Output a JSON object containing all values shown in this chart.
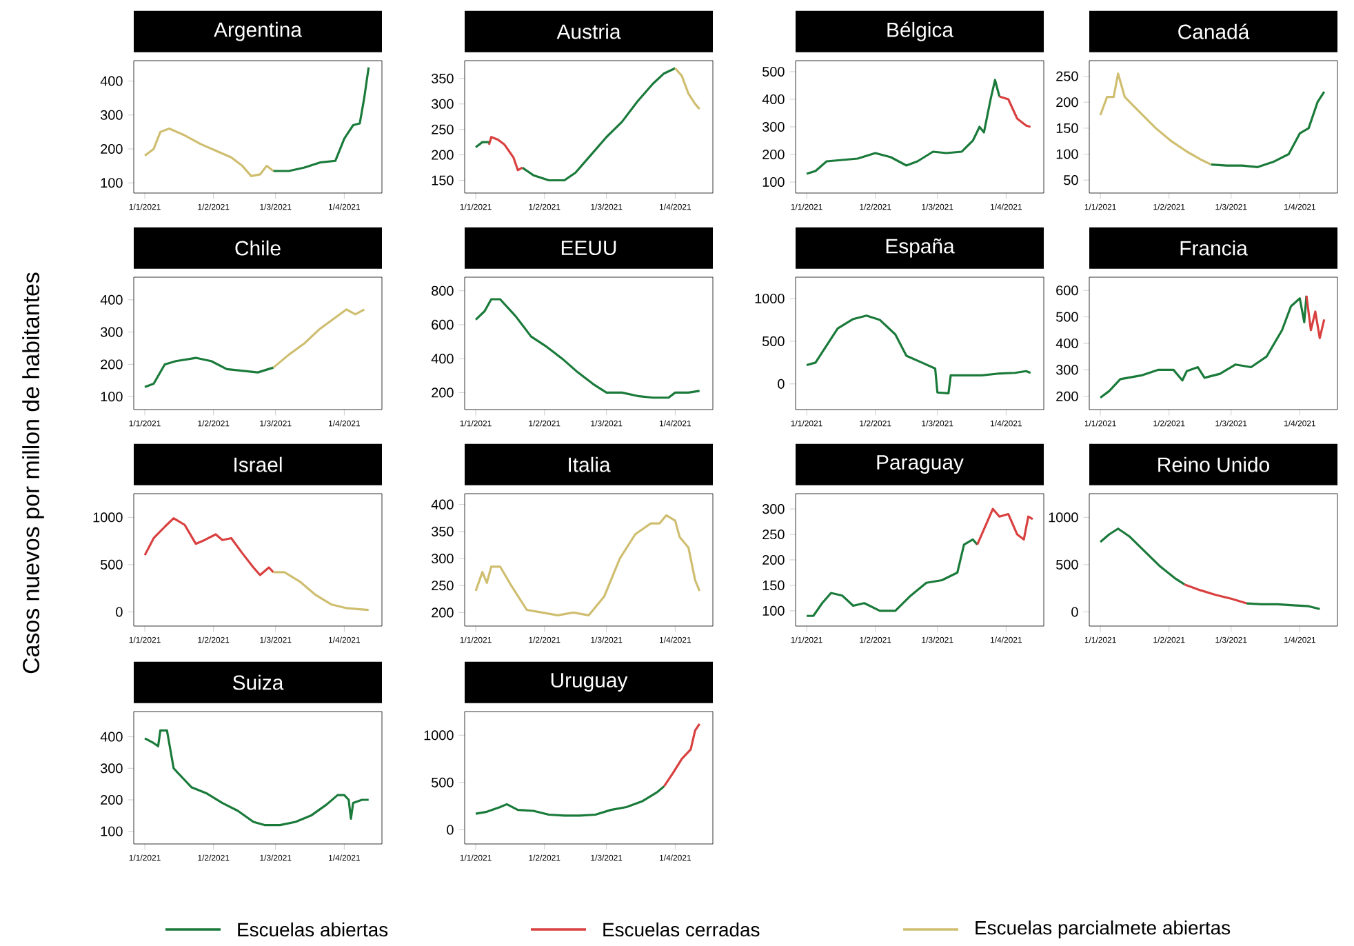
{
  "chart_data": [
    {
      "type": "line",
      "title": "Argentina",
      "ylabel": "Casos nuevos por millon de habitantes",
      "xlim": [
        "2020-12-27",
        "2021-04-18"
      ],
      "ylim": [
        70,
        460
      ],
      "yticks": [
        100,
        200,
        300,
        400
      ],
      "xticks": [
        {
          "value": "2021-01-01",
          "label": "1/1/2021"
        },
        {
          "value": "2021-02-01",
          "label": "1/2/2021"
        },
        {
          "value": "2021-03-01",
          "label": "1/3/2021"
        },
        {
          "value": "2021-04-01",
          "label": "1/4/2021"
        }
      ],
      "series": [
        {
          "color": "#cfbe70",
          "x": [
            "2021-01-01",
            "2021-01-05",
            "2021-01-08",
            "2021-01-12",
            "2021-01-19",
            "2021-01-26",
            "2021-02-02",
            "2021-02-09",
            "2021-02-14",
            "2021-02-18",
            "2021-02-22",
            "2021-02-25",
            "2021-02-28"
          ],
          "values": [
            180,
            200,
            250,
            260,
            240,
            215,
            195,
            175,
            150,
            120,
            125,
            150,
            135
          ]
        },
        {
          "color": "#1a7a3a",
          "x": [
            "2021-02-28",
            "2021-03-07",
            "2021-03-14",
            "2021-03-21",
            "2021-03-28",
            "2021-04-01",
            "2021-04-05",
            "2021-04-08",
            "2021-04-10",
            "2021-04-12"
          ],
          "values": [
            135,
            135,
            145,
            160,
            165,
            230,
            270,
            275,
            350,
            440
          ]
        }
      ]
    },
    {
      "type": "line",
      "title": "Austria",
      "legend": "bottom",
      "xlim": [
        "2020-12-27",
        "2021-04-18"
      ],
      "ylim": [
        125,
        385
      ],
      "yticks": [
        150,
        200,
        250,
        300,
        350
      ],
      "xticks": [
        {
          "value": "2021-01-01",
          "label": "1/1/2021"
        },
        {
          "value": "2021-02-01",
          "label": "1/2/2021"
        },
        {
          "value": "2021-03-01",
          "label": "1/3/2021"
        },
        {
          "value": "2021-04-01",
          "label": "1/4/2021"
        }
      ],
      "series": [
        {
          "name": "Escuelas abiertas",
          "color": "#1a7a3a",
          "x": [
            "2021-01-22",
            "2021-01-27",
            "2021-02-03",
            "2021-02-10",
            "2021-02-15",
            "2021-02-22",
            "2021-03-01",
            "2021-03-08",
            "2021-03-15",
            "2021-03-22",
            "2021-03-27",
            "2021-04-01"
          ],
          "values": [
            175,
            160,
            150,
            150,
            165,
            200,
            235,
            265,
            305,
            340,
            360,
            370
          ]
        },
        {
          "name": "Escuelas cerradas",
          "color": "#d94040",
          "x": [
            "2021-01-07",
            "2021-01-08",
            "2021-01-11",
            "2021-01-14",
            "2021-01-18",
            "2021-01-20",
            "2021-01-22"
          ],
          "values": [
            220,
            235,
            230,
            220,
            195,
            170,
            175
          ]
        },
        {
          "name": "Escuelas parcialmete abiertas",
          "color": "#cfbe70",
          "x": [
            "2021-04-01",
            "2021-04-04",
            "2021-04-07",
            "2021-04-10",
            "2021-04-12"
          ],
          "values": [
            370,
            355,
            320,
            300,
            290
          ]
        },
        {
          "color": "#1a7a3a",
          "x": [
            "2021-01-01",
            "2021-01-04",
            "2021-01-07"
          ],
          "values": [
            215,
            225,
            225
          ]
        }
      ]
    },
    {
      "type": "line",
      "title": "Bélgica",
      "xlim": [
        "2020-12-27",
        "2021-04-18"
      ],
      "ylim": [
        60,
        540
      ],
      "yticks": [
        100,
        200,
        300,
        400,
        500
      ],
      "xticks": [
        {
          "value": "2021-01-01",
          "label": "1/1/2021"
        },
        {
          "value": "2021-02-01",
          "label": "1/2/2021"
        },
        {
          "value": "2021-03-01",
          "label": "1/3/2021"
        },
        {
          "value": "2021-04-01",
          "label": "1/4/2021"
        }
      ],
      "series": [
        {
          "color": "#1a7a3a",
          "x": [
            "2021-01-01",
            "2021-01-05",
            "2021-01-10",
            "2021-01-17",
            "2021-01-24",
            "2021-02-01",
            "2021-02-08",
            "2021-02-15",
            "2021-02-20",
            "2021-02-27",
            "2021-03-05",
            "2021-03-12",
            "2021-03-17",
            "2021-03-20",
            "2021-03-22",
            "2021-03-25",
            "2021-03-27",
            "2021-03-29"
          ],
          "values": [
            130,
            140,
            175,
            180,
            185,
            205,
            190,
            160,
            175,
            210,
            205,
            210,
            250,
            300,
            280,
            400,
            470,
            410
          ]
        },
        {
          "color": "#d94040",
          "x": [
            "2021-03-29",
            "2021-04-02",
            "2021-04-06",
            "2021-04-10",
            "2021-04-12"
          ],
          "values": [
            410,
            400,
            330,
            305,
            300
          ]
        }
      ]
    },
    {
      "type": "line",
      "title": "Canadá",
      "xlim": [
        "2020-12-27",
        "2021-04-18"
      ],
      "ylim": [
        25,
        280
      ],
      "yticks": [
        50,
        100,
        150,
        200,
        250
      ],
      "xticks": [
        {
          "value": "2021-01-01",
          "label": "1/1/2021"
        },
        {
          "value": "2021-02-01",
          "label": "1/2/2021"
        },
        {
          "value": "2021-03-01",
          "label": "1/3/2021"
        },
        {
          "value": "2021-04-01",
          "label": "1/4/2021"
        }
      ],
      "series": [
        {
          "color": "#cfbe70",
          "x": [
            "2021-01-01",
            "2021-01-04",
            "2021-01-07",
            "2021-01-09",
            "2021-01-12",
            "2021-01-19",
            "2021-01-26",
            "2021-02-02",
            "2021-02-09",
            "2021-02-16",
            "2021-02-20"
          ],
          "values": [
            175,
            210,
            210,
            255,
            210,
            180,
            150,
            125,
            105,
            88,
            80
          ]
        },
        {
          "color": "#1a7a3a",
          "x": [
            "2021-02-20",
            "2021-02-27",
            "2021-03-06",
            "2021-03-13",
            "2021-03-20",
            "2021-03-27",
            "2021-04-01",
            "2021-04-05",
            "2021-04-09",
            "2021-04-12"
          ],
          "values": [
            80,
            78,
            78,
            75,
            85,
            100,
            140,
            150,
            200,
            220
          ]
        }
      ]
    },
    {
      "type": "line",
      "title": "Chile",
      "xlim": [
        "2020-12-27",
        "2021-04-18"
      ],
      "ylim": [
        60,
        470
      ],
      "yticks": [
        100,
        200,
        300,
        400
      ],
      "xticks": [
        {
          "value": "2021-01-01",
          "label": "1/1/2021"
        },
        {
          "value": "2021-02-01",
          "label": "1/2/2021"
        },
        {
          "value": "2021-03-01",
          "label": "1/3/2021"
        },
        {
          "value": "2021-04-01",
          "label": "1/4/2021"
        }
      ],
      "series": [
        {
          "color": "#1a7a3a",
          "x": [
            "2021-01-01",
            "2021-01-05",
            "2021-01-10",
            "2021-01-15",
            "2021-01-24",
            "2021-01-31",
            "2021-02-07",
            "2021-02-14",
            "2021-02-21",
            "2021-02-28"
          ],
          "values": [
            130,
            140,
            200,
            210,
            220,
            210,
            185,
            180,
            175,
            190
          ]
        },
        {
          "color": "#cfbe70",
          "x": [
            "2021-02-28",
            "2021-03-07",
            "2021-03-14",
            "2021-03-21",
            "2021-03-28",
            "2021-04-02",
            "2021-04-06",
            "2021-04-10"
          ],
          "values": [
            190,
            230,
            265,
            310,
            345,
            370,
            355,
            370
          ]
        }
      ]
    },
    {
      "type": "line",
      "title": "EEUU",
      "xlim": [
        "2020-12-27",
        "2021-04-18"
      ],
      "ylim": [
        100,
        880
      ],
      "yticks": [
        200,
        400,
        600,
        800
      ],
      "xticks": [
        {
          "value": "2021-01-01",
          "label": "1/1/2021"
        },
        {
          "value": "2021-02-01",
          "label": "1/2/2021"
        },
        {
          "value": "2021-03-01",
          "label": "1/3/2021"
        },
        {
          "value": "2021-04-01",
          "label": "1/4/2021"
        }
      ],
      "series": [
        {
          "color": "#1a7a3a",
          "x": [
            "2021-01-01",
            "2021-01-05",
            "2021-01-08",
            "2021-01-12",
            "2021-01-19",
            "2021-01-26",
            "2021-02-02",
            "2021-02-09",
            "2021-02-16",
            "2021-02-23",
            "2021-03-01",
            "2021-03-08",
            "2021-03-15",
            "2021-03-22",
            "2021-03-29",
            "2021-04-01",
            "2021-04-07",
            "2021-04-12"
          ],
          "values": [
            630,
            680,
            750,
            750,
            650,
            530,
            470,
            400,
            320,
            250,
            200,
            200,
            180,
            170,
            170,
            200,
            200,
            210
          ]
        }
      ]
    },
    {
      "type": "line",
      "title": "España",
      "xlim": [
        "2020-12-27",
        "2021-04-18"
      ],
      "ylim": [
        -300,
        1250
      ],
      "yticks": [
        0,
        500,
        1000
      ],
      "xticks": [
        {
          "value": "2021-01-01",
          "label": "1/1/2021"
        },
        {
          "value": "2021-02-01",
          "label": "1/2/2021"
        },
        {
          "value": "2021-03-01",
          "label": "1/3/2021"
        },
        {
          "value": "2021-04-01",
          "label": "1/4/2021"
        }
      ],
      "series": [
        {
          "color": "#1a7a3a",
          "x": [
            "2021-01-01",
            "2021-01-05",
            "2021-01-10",
            "2021-01-15",
            "2021-01-22",
            "2021-01-28",
            "2021-02-03",
            "2021-02-10",
            "2021-02-15",
            "2021-02-22",
            "2021-02-28",
            "2021-03-01",
            "2021-03-06",
            "2021-03-07",
            "2021-03-14",
            "2021-03-21",
            "2021-03-28",
            "2021-04-05",
            "2021-04-10",
            "2021-04-12"
          ],
          "values": [
            220,
            250,
            450,
            650,
            760,
            800,
            750,
            580,
            330,
            250,
            180,
            -100,
            -110,
            100,
            100,
            100,
            120,
            130,
            150,
            130
          ]
        }
      ]
    },
    {
      "type": "line",
      "title": "Francia",
      "xlim": [
        "2020-12-27",
        "2021-04-18"
      ],
      "ylim": [
        150,
        650
      ],
      "yticks": [
        200,
        300,
        400,
        500,
        600
      ],
      "xticks": [
        {
          "value": "2021-01-01",
          "label": "1/1/2021"
        },
        {
          "value": "2021-02-01",
          "label": "1/2/2021"
        },
        {
          "value": "2021-03-01",
          "label": "1/3/2021"
        },
        {
          "value": "2021-04-01",
          "label": "1/4/2021"
        }
      ],
      "series": [
        {
          "color": "#1a7a3a",
          "x": [
            "2021-01-01",
            "2021-01-05",
            "2021-01-10",
            "2021-01-20",
            "2021-01-27",
            "2021-02-03",
            "2021-02-07",
            "2021-02-09",
            "2021-02-14",
            "2021-02-17",
            "2021-02-24",
            "2021-03-03",
            "2021-03-10",
            "2021-03-17",
            "2021-03-24",
            "2021-03-28",
            "2021-04-01",
            "2021-04-03",
            "2021-04-04"
          ],
          "values": [
            195,
            220,
            265,
            280,
            300,
            300,
            260,
            295,
            310,
            270,
            285,
            320,
            310,
            350,
            450,
            540,
            570,
            480,
            580
          ]
        },
        {
          "color": "#d94040",
          "x": [
            "2021-04-04",
            "2021-04-06",
            "2021-04-08",
            "2021-04-10",
            "2021-04-12"
          ],
          "values": [
            580,
            450,
            520,
            420,
            490
          ]
        }
      ]
    },
    {
      "type": "line",
      "title": "Israel",
      "xlim": [
        "2020-12-27",
        "2021-04-18"
      ],
      "ylim": [
        -150,
        1250
      ],
      "yticks": [
        0,
        500,
        1000
      ],
      "xticks": [
        {
          "value": "2021-01-01",
          "label": "1/1/2021"
        },
        {
          "value": "2021-02-01",
          "label": "1/2/2021"
        },
        {
          "value": "2021-03-01",
          "label": "1/3/2021"
        },
        {
          "value": "2021-04-01",
          "label": "1/4/2021"
        }
      ],
      "series": [
        {
          "color": "#d94040",
          "x": [
            "2021-01-01",
            "2021-01-05",
            "2021-01-10",
            "2021-01-14",
            "2021-01-19",
            "2021-01-24",
            "2021-01-28",
            "2021-02-02",
            "2021-02-05",
            "2021-02-09",
            "2021-02-14",
            "2021-02-19",
            "2021-02-22",
            "2021-02-26",
            "2021-02-28"
          ],
          "values": [
            600,
            780,
            900,
            990,
            920,
            720,
            760,
            820,
            760,
            780,
            620,
            470,
            390,
            470,
            420
          ]
        },
        {
          "color": "#cfbe70",
          "x": [
            "2021-02-28",
            "2021-03-05",
            "2021-03-12",
            "2021-03-19",
            "2021-03-26",
            "2021-04-02",
            "2021-04-07",
            "2021-04-12"
          ],
          "values": [
            420,
            420,
            320,
            180,
            80,
            40,
            30,
            20
          ]
        }
      ]
    },
    {
      "type": "line",
      "title": "Italia",
      "xlim": [
        "2020-12-27",
        "2021-04-18"
      ],
      "ylim": [
        175,
        420
      ],
      "yticks": [
        200,
        250,
        300,
        350,
        400
      ],
      "xticks": [
        {
          "value": "2021-01-01",
          "label": "1/1/2021"
        },
        {
          "value": "2021-02-01",
          "label": "1/2/2021"
        },
        {
          "value": "2021-03-01",
          "label": "1/3/2021"
        },
        {
          "value": "2021-04-01",
          "label": "1/4/2021"
        }
      ],
      "series": [
        {
          "color": "#cfbe70",
          "x": [
            "2021-01-01",
            "2021-01-04",
            "2021-01-06",
            "2021-01-08",
            "2021-01-12",
            "2021-01-17",
            "2021-01-24",
            "2021-01-31",
            "2021-02-07",
            "2021-02-14",
            "2021-02-21",
            "2021-02-28",
            "2021-03-07",
            "2021-03-14",
            "2021-03-21",
            "2021-03-25",
            "2021-03-28",
            "2021-04-01",
            "2021-04-03",
            "2021-04-07",
            "2021-04-10",
            "2021-04-12"
          ],
          "values": [
            240,
            275,
            255,
            285,
            285,
            250,
            205,
            200,
            195,
            200,
            195,
            230,
            300,
            345,
            365,
            365,
            380,
            370,
            340,
            320,
            260,
            240
          ]
        }
      ]
    },
    {
      "type": "line",
      "title": "Paraguay",
      "xlim": [
        "2020-12-27",
        "2021-04-18"
      ],
      "ylim": [
        70,
        330
      ],
      "yticks": [
        100,
        150,
        200,
        250,
        300
      ],
      "xticks": [
        {
          "value": "2021-01-01",
          "label": "1/1/2021"
        },
        {
          "value": "2021-02-01",
          "label": "1/2/2021"
        },
        {
          "value": "2021-03-01",
          "label": "1/3/2021"
        },
        {
          "value": "2021-04-01",
          "label": "1/4/2021"
        }
      ],
      "series": [
        {
          "color": "#1a7a3a",
          "x": [
            "2021-01-01",
            "2021-01-04",
            "2021-01-08",
            "2021-01-12",
            "2021-01-17",
            "2021-01-22",
            "2021-01-27",
            "2021-02-03",
            "2021-02-10",
            "2021-02-17",
            "2021-02-24",
            "2021-03-03",
            "2021-03-10",
            "2021-03-13",
            "2021-03-17",
            "2021-03-19"
          ],
          "values": [
            90,
            90,
            115,
            135,
            130,
            110,
            115,
            100,
            100,
            130,
            155,
            160,
            175,
            230,
            240,
            230
          ]
        },
        {
          "color": "#d94040",
          "x": [
            "2021-03-19",
            "2021-03-23",
            "2021-03-26",
            "2021-03-29",
            "2021-04-02",
            "2021-04-06",
            "2021-04-09",
            "2021-04-11",
            "2021-04-13"
          ],
          "values": [
            230,
            270,
            300,
            285,
            290,
            250,
            240,
            285,
            280
          ]
        }
      ]
    },
    {
      "type": "line",
      "title": "Reino Unido",
      "xlim": [
        "2020-12-27",
        "2021-04-18"
      ],
      "ylim": [
        -150,
        1250
      ],
      "yticks": [
        0,
        500,
        1000
      ],
      "xticks": [
        {
          "value": "2021-01-01",
          "label": "1/1/2021"
        },
        {
          "value": "2021-02-01",
          "label": "1/2/2021"
        },
        {
          "value": "2021-03-01",
          "label": "1/3/2021"
        },
        {
          "value": "2021-04-01",
          "label": "1/4/2021"
        }
      ],
      "series": [
        {
          "color": "#1a7a3a",
          "x": [
            "2021-01-01",
            "2021-01-05",
            "2021-01-09",
            "2021-01-14",
            "2021-01-21",
            "2021-01-28",
            "2021-02-04",
            "2021-02-08",
            "2021-02-22",
            "2021-03-08",
            "2021-03-15",
            "2021-03-22",
            "2021-03-29",
            "2021-04-05",
            "2021-04-10"
          ],
          "values": [
            740,
            820,
            880,
            800,
            640,
            480,
            350,
            290,
            null,
            90,
            80,
            80,
            70,
            60,
            30
          ]
        },
        {
          "color": "#d94040",
          "x": [
            "2021-02-08",
            "2021-02-15",
            "2021-02-22",
            "2021-03-01",
            "2021-03-08"
          ],
          "values": [
            290,
            230,
            180,
            140,
            90
          ]
        }
      ]
    },
    {
      "type": "line",
      "title": "Suiza",
      "xlim": [
        "2020-12-27",
        "2021-04-18"
      ],
      "ylim": [
        60,
        480
      ],
      "yticks": [
        100,
        200,
        300,
        400
      ],
      "xticks": [
        {
          "value": "2021-01-01",
          "label": "1/1/2021"
        },
        {
          "value": "2021-02-01",
          "label": "1/2/2021"
        },
        {
          "value": "2021-03-01",
          "label": "1/3/2021"
        },
        {
          "value": "2021-04-01",
          "label": "1/4/2021"
        }
      ],
      "series": [
        {
          "color": "#1a7a3a",
          "x": [
            "2021-01-01",
            "2021-01-05",
            "2021-01-07",
            "2021-01-08",
            "2021-01-11",
            "2021-01-14",
            "2021-01-18",
            "2021-01-22",
            "2021-01-29",
            "2021-02-05",
            "2021-02-12",
            "2021-02-19",
            "2021-02-24",
            "2021-03-03",
            "2021-03-10",
            "2021-03-17",
            "2021-03-24",
            "2021-03-29",
            "2021-04-01",
            "2021-04-03",
            "2021-04-04",
            "2021-04-05",
            "2021-04-09",
            "2021-04-12"
          ],
          "values": [
            395,
            380,
            370,
            420,
            420,
            300,
            270,
            240,
            220,
            190,
            165,
            130,
            120,
            120,
            130,
            150,
            185,
            215,
            215,
            200,
            140,
            190,
            200,
            200
          ]
        }
      ]
    },
    {
      "type": "line",
      "title": "Uruguay",
      "xlim": [
        "2020-12-27",
        "2021-04-18"
      ],
      "ylim": [
        -150,
        1250
      ],
      "yticks": [
        0,
        500,
        1000
      ],
      "xticks": [
        {
          "value": "2021-01-01",
          "label": "1/1/2021"
        },
        {
          "value": "2021-02-01",
          "label": "1/2/2021"
        },
        {
          "value": "2021-03-01",
          "label": "1/3/2021"
        },
        {
          "value": "2021-04-01",
          "label": "1/4/2021"
        }
      ],
      "series": [
        {
          "color": "#1a7a3a",
          "x": [
            "2021-01-01",
            "2021-01-06",
            "2021-01-12",
            "2021-01-15",
            "2021-01-20",
            "2021-01-27",
            "2021-02-03",
            "2021-02-10",
            "2021-02-17",
            "2021-02-24",
            "2021-03-03",
            "2021-03-10",
            "2021-03-17",
            "2021-03-24",
            "2021-03-27"
          ],
          "values": [
            170,
            190,
            240,
            270,
            210,
            200,
            160,
            150,
            150,
            160,
            210,
            240,
            300,
            400,
            460
          ]
        },
        {
          "color": "#d94040",
          "x": [
            "2021-03-27",
            "2021-03-31",
            "2021-04-04",
            "2021-04-08",
            "2021-04-10",
            "2021-04-12"
          ],
          "values": [
            460,
            600,
            750,
            850,
            1050,
            1120
          ]
        }
      ]
    }
  ]
}
